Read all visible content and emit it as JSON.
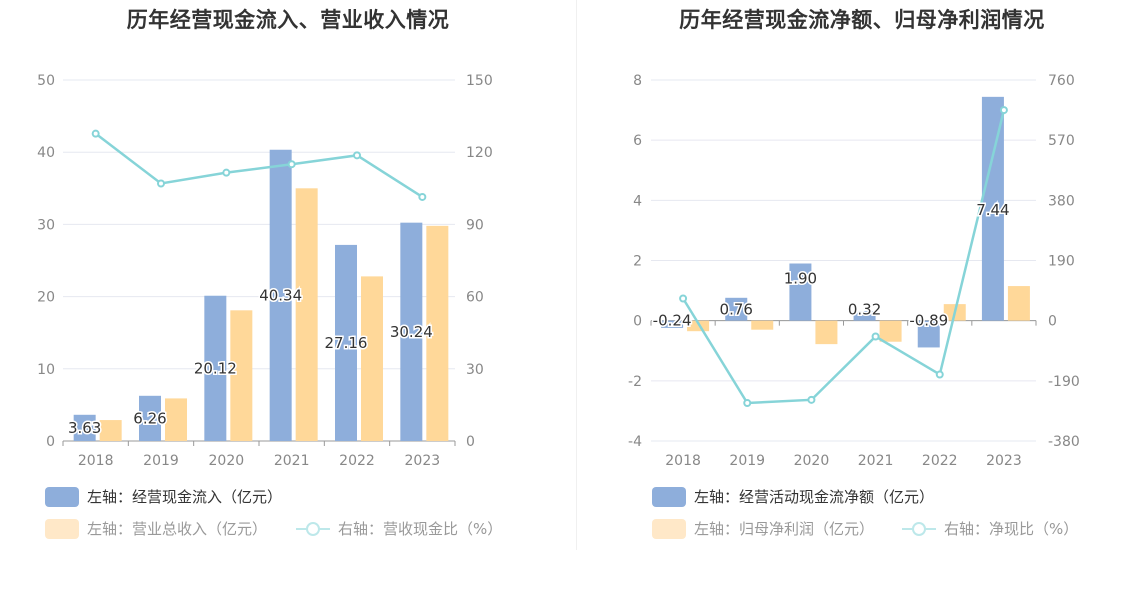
{
  "chart_data": [
    {
      "type": "bar",
      "title": "历年经营现金流入、营业收入情况",
      "categories": [
        "2018",
        "2019",
        "2020",
        "2021",
        "2022",
        "2023"
      ],
      "left_axis": {
        "ticks": [
          "0",
          "10",
          "20",
          "30",
          "40",
          "50"
        ],
        "ylim": [
          0,
          50
        ]
      },
      "right_axis": {
        "ticks": [
          "0",
          "30",
          "60",
          "90",
          "120",
          "150"
        ],
        "ylim": [
          0,
          150
        ]
      },
      "series": [
        {
          "name": "左轴：经营现金流入（亿元）",
          "type": "bar",
          "axis": "left",
          "color": "#8eaedb",
          "values": [
            3.63,
            6.26,
            20.12,
            40.34,
            27.16,
            30.24
          ],
          "labels": [
            "3.63",
            "6.26",
            "20.12",
            "40.34",
            "27.16",
            "30.24"
          ]
        },
        {
          "name": "左轴：营业总收入（亿元）",
          "type": "bar",
          "axis": "left",
          "color": "#ffd899",
          "values": [
            2.9,
            5.9,
            18.1,
            35.0,
            22.8,
            29.8
          ]
        },
        {
          "name": "右轴：营收现金比（%）",
          "type": "line",
          "axis": "right",
          "color": "#86d4d8",
          "values": [
            127.7,
            107.0,
            111.5,
            115.0,
            118.7,
            101.4
          ]
        }
      ],
      "grid": true,
      "legend_position": "bottom-left"
    },
    {
      "type": "bar",
      "title": "历年经营现金流净额、归母净利润情况",
      "categories": [
        "2018",
        "2019",
        "2020",
        "2021",
        "2022",
        "2023"
      ],
      "left_axis": {
        "ticks": [
          "-4",
          "-2",
          "0",
          "2",
          "4",
          "6",
          "8"
        ],
        "ylim": [
          -4,
          8
        ]
      },
      "right_axis": {
        "ticks": [
          "-380",
          "-190",
          "0",
          "190",
          "380",
          "570",
          "760"
        ],
        "ylim": [
          -380,
          760
        ]
      },
      "series": [
        {
          "name": "左轴：经营活动现金流净额（亿元）",
          "type": "bar",
          "axis": "left",
          "color": "#8eaedb",
          "values": [
            -0.24,
            0.76,
            1.9,
            0.32,
            -0.89,
            7.44
          ],
          "labels": [
            "-0.24",
            "0.76",
            "1.90",
            "0.32",
            "-0.89",
            "7.44"
          ]
        },
        {
          "name": "左轴：归母净利润（亿元）",
          "type": "bar",
          "axis": "left",
          "color": "#ffd899",
          "values": [
            -0.35,
            -0.3,
            -0.78,
            -0.7,
            0.55,
            1.15
          ]
        },
        {
          "name": "右轴：净现比（%）",
          "type": "line",
          "axis": "right",
          "color": "#86d4d8",
          "values": [
            70,
            -260,
            -250,
            -50,
            -170,
            665
          ]
        }
      ],
      "grid": true,
      "legend_position": "bottom-left"
    }
  ]
}
